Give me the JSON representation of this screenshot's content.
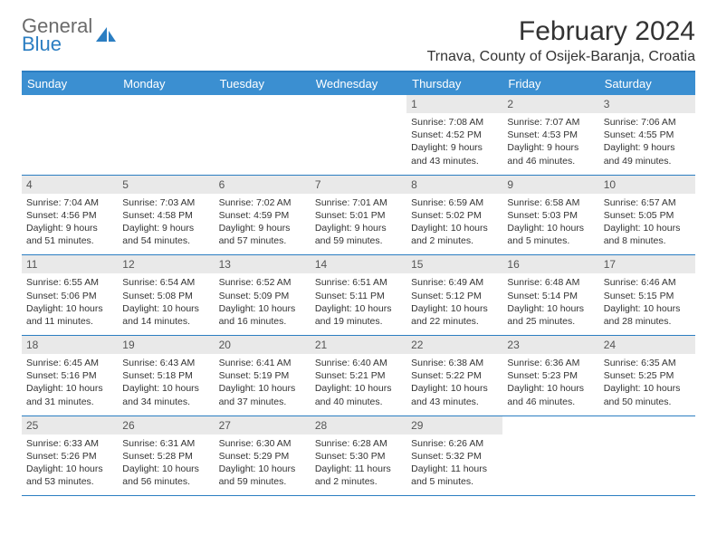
{
  "logo": {
    "word1": "General",
    "word2": "Blue"
  },
  "title": "February 2024",
  "location": "Trnava, County of Osijek-Baranja, Croatia",
  "colors": {
    "accent": "#2b7ec2",
    "header_bg": "#3b8fd1",
    "header_fg": "#ffffff",
    "daynum_bg": "#e9e9e9",
    "text": "#333333"
  },
  "day_names": [
    "Sunday",
    "Monday",
    "Tuesday",
    "Wednesday",
    "Thursday",
    "Friday",
    "Saturday"
  ],
  "weeks": [
    [
      {
        "n": "",
        "lines": [
          "",
          "",
          "",
          ""
        ]
      },
      {
        "n": "",
        "lines": [
          "",
          "",
          "",
          ""
        ]
      },
      {
        "n": "",
        "lines": [
          "",
          "",
          "",
          ""
        ]
      },
      {
        "n": "",
        "lines": [
          "",
          "",
          "",
          ""
        ]
      },
      {
        "n": "1",
        "lines": [
          "Sunrise: 7:08 AM",
          "Sunset: 4:52 PM",
          "Daylight: 9 hours",
          "and 43 minutes."
        ]
      },
      {
        "n": "2",
        "lines": [
          "Sunrise: 7:07 AM",
          "Sunset: 4:53 PM",
          "Daylight: 9 hours",
          "and 46 minutes."
        ]
      },
      {
        "n": "3",
        "lines": [
          "Sunrise: 7:06 AM",
          "Sunset: 4:55 PM",
          "Daylight: 9 hours",
          "and 49 minutes."
        ]
      }
    ],
    [
      {
        "n": "4",
        "lines": [
          "Sunrise: 7:04 AM",
          "Sunset: 4:56 PM",
          "Daylight: 9 hours",
          "and 51 minutes."
        ]
      },
      {
        "n": "5",
        "lines": [
          "Sunrise: 7:03 AM",
          "Sunset: 4:58 PM",
          "Daylight: 9 hours",
          "and 54 minutes."
        ]
      },
      {
        "n": "6",
        "lines": [
          "Sunrise: 7:02 AM",
          "Sunset: 4:59 PM",
          "Daylight: 9 hours",
          "and 57 minutes."
        ]
      },
      {
        "n": "7",
        "lines": [
          "Sunrise: 7:01 AM",
          "Sunset: 5:01 PM",
          "Daylight: 9 hours",
          "and 59 minutes."
        ]
      },
      {
        "n": "8",
        "lines": [
          "Sunrise: 6:59 AM",
          "Sunset: 5:02 PM",
          "Daylight: 10 hours",
          "and 2 minutes."
        ]
      },
      {
        "n": "9",
        "lines": [
          "Sunrise: 6:58 AM",
          "Sunset: 5:03 PM",
          "Daylight: 10 hours",
          "and 5 minutes."
        ]
      },
      {
        "n": "10",
        "lines": [
          "Sunrise: 6:57 AM",
          "Sunset: 5:05 PM",
          "Daylight: 10 hours",
          "and 8 minutes."
        ]
      }
    ],
    [
      {
        "n": "11",
        "lines": [
          "Sunrise: 6:55 AM",
          "Sunset: 5:06 PM",
          "Daylight: 10 hours",
          "and 11 minutes."
        ]
      },
      {
        "n": "12",
        "lines": [
          "Sunrise: 6:54 AM",
          "Sunset: 5:08 PM",
          "Daylight: 10 hours",
          "and 14 minutes."
        ]
      },
      {
        "n": "13",
        "lines": [
          "Sunrise: 6:52 AM",
          "Sunset: 5:09 PM",
          "Daylight: 10 hours",
          "and 16 minutes."
        ]
      },
      {
        "n": "14",
        "lines": [
          "Sunrise: 6:51 AM",
          "Sunset: 5:11 PM",
          "Daylight: 10 hours",
          "and 19 minutes."
        ]
      },
      {
        "n": "15",
        "lines": [
          "Sunrise: 6:49 AM",
          "Sunset: 5:12 PM",
          "Daylight: 10 hours",
          "and 22 minutes."
        ]
      },
      {
        "n": "16",
        "lines": [
          "Sunrise: 6:48 AM",
          "Sunset: 5:14 PM",
          "Daylight: 10 hours",
          "and 25 minutes."
        ]
      },
      {
        "n": "17",
        "lines": [
          "Sunrise: 6:46 AM",
          "Sunset: 5:15 PM",
          "Daylight: 10 hours",
          "and 28 minutes."
        ]
      }
    ],
    [
      {
        "n": "18",
        "lines": [
          "Sunrise: 6:45 AM",
          "Sunset: 5:16 PM",
          "Daylight: 10 hours",
          "and 31 minutes."
        ]
      },
      {
        "n": "19",
        "lines": [
          "Sunrise: 6:43 AM",
          "Sunset: 5:18 PM",
          "Daylight: 10 hours",
          "and 34 minutes."
        ]
      },
      {
        "n": "20",
        "lines": [
          "Sunrise: 6:41 AM",
          "Sunset: 5:19 PM",
          "Daylight: 10 hours",
          "and 37 minutes."
        ]
      },
      {
        "n": "21",
        "lines": [
          "Sunrise: 6:40 AM",
          "Sunset: 5:21 PM",
          "Daylight: 10 hours",
          "and 40 minutes."
        ]
      },
      {
        "n": "22",
        "lines": [
          "Sunrise: 6:38 AM",
          "Sunset: 5:22 PM",
          "Daylight: 10 hours",
          "and 43 minutes."
        ]
      },
      {
        "n": "23",
        "lines": [
          "Sunrise: 6:36 AM",
          "Sunset: 5:23 PM",
          "Daylight: 10 hours",
          "and 46 minutes."
        ]
      },
      {
        "n": "24",
        "lines": [
          "Sunrise: 6:35 AM",
          "Sunset: 5:25 PM",
          "Daylight: 10 hours",
          "and 50 minutes."
        ]
      }
    ],
    [
      {
        "n": "25",
        "lines": [
          "Sunrise: 6:33 AM",
          "Sunset: 5:26 PM",
          "Daylight: 10 hours",
          "and 53 minutes."
        ]
      },
      {
        "n": "26",
        "lines": [
          "Sunrise: 6:31 AM",
          "Sunset: 5:28 PM",
          "Daylight: 10 hours",
          "and 56 minutes."
        ]
      },
      {
        "n": "27",
        "lines": [
          "Sunrise: 6:30 AM",
          "Sunset: 5:29 PM",
          "Daylight: 10 hours",
          "and 59 minutes."
        ]
      },
      {
        "n": "28",
        "lines": [
          "Sunrise: 6:28 AM",
          "Sunset: 5:30 PM",
          "Daylight: 11 hours",
          "and 2 minutes."
        ]
      },
      {
        "n": "29",
        "lines": [
          "Sunrise: 6:26 AM",
          "Sunset: 5:32 PM",
          "Daylight: 11 hours",
          "and 5 minutes."
        ]
      },
      {
        "n": "",
        "lines": [
          "",
          "",
          "",
          ""
        ]
      },
      {
        "n": "",
        "lines": [
          "",
          "",
          "",
          ""
        ]
      }
    ]
  ]
}
